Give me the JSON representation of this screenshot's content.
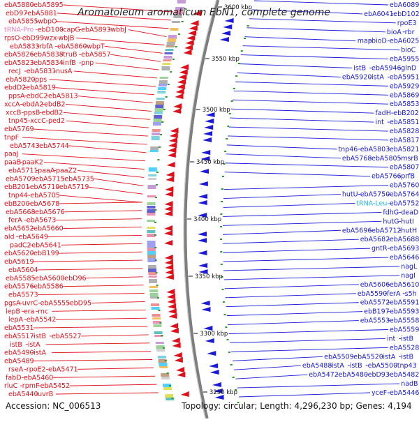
{
  "title": "Aromatoleum aromaticum EbN1, complete genome",
  "accession": "Accession: NC_006513",
  "topology": "Topology: circular; Length: 4,296,230 bp; Genes: 4,194",
  "colors": {
    "forward": "#e0101a",
    "reverse": "#1a1ad8",
    "trna": "#f07bb8",
    "trna_alt": "#22b8e6",
    "backbone": "#888888"
  },
  "ticks": [
    "3600 kbp",
    "3550 kbp",
    "3500 kbp",
    "3450 kbp",
    "3400 kbp",
    "3350 kbp",
    "3300 kbp",
    "3250 kbp"
  ],
  "left_labels": [
    [
      "ebA5880",
      "ebA5895"
    ],
    [
      "ebD97",
      "ebA5881"
    ],
    [
      "ebA5855",
      "wbpO"
    ],
    [
      "tRNA-Pro",
      "ebD100",
      "capG",
      "ebA5893",
      "wbbJ"
    ],
    [
      "rpsO",
      "ebD99",
      "wzx",
      "wbjB"
    ],
    [
      "ebA5833",
      "rbfA",
      "ebA5860",
      "wbpT"
    ],
    [
      "ebA5826",
      "ebA5838",
      "truB",
      "ebA5857"
    ],
    [
      "ebA5823",
      "ebA5834",
      "infB",
      "pnp"
    ],
    [
      "recJ",
      "ebA5831",
      "nusA"
    ],
    [
      "ebA5820",
      "pps"
    ],
    [
      "ebdD2",
      "ebA5819"
    ],
    [
      "ppsA",
      "ebdC2",
      "ebA5813"
    ],
    [
      "xccA",
      "ebdA2",
      "ebdB2"
    ],
    [
      "xccB",
      "ppsB",
      "ebdB2"
    ],
    [
      "tnp45",
      "xccC",
      "ped2"
    ],
    [
      "ebA5769"
    ],
    [
      "tnpF"
    ],
    [
      "ebA5743",
      "ebA5744"
    ],
    [
      "paaJ"
    ],
    [
      "paaB",
      "paaK2"
    ],
    [
      "ebA5711",
      "paaA",
      "paaZ2"
    ],
    [
      "ebA5709",
      "ebA5715",
      "ebA5735"
    ],
    [
      "ebB201",
      "ebA5710",
      "ebA5719"
    ],
    [
      "tnp44",
      "ebA5705"
    ],
    [
      "ebB200",
      "ebA5678"
    ],
    [
      "ebA5668",
      "ebA5676"
    ],
    [
      "ferA",
      "ebA5673"
    ],
    [
      "ebA5652",
      "ebA5660"
    ],
    [
      "ald",
      "ebA5649"
    ],
    [
      "padC2",
      "ebA5641"
    ],
    [
      "ebA5620",
      "ebB199"
    ],
    [
      "ebA5619"
    ],
    [
      "ebA5604"
    ],
    [
      "ebA5585",
      "ebA5600",
      "ebD96"
    ],
    [
      "ebA5576",
      "ebA5586"
    ],
    [
      "ebA5573"
    ],
    [
      "pgsA",
      "uvrC",
      "ebA5555",
      "ebD95"
    ],
    [
      "lepB",
      "era",
      "rnc"
    ],
    [
      "lepA",
      "ebA5542"
    ],
    [
      "ebA5531"
    ],
    [
      "ebA5517",
      "istB",
      "ebA5527"
    ],
    [
      "istB",
      "istA"
    ],
    [
      "ebA5490",
      "istA"
    ],
    [
      "ebA5489"
    ],
    [
      "rseA",
      "rpoE2",
      "ebA5471"
    ],
    [
      "fabD",
      "ebA5460"
    ],
    [
      "rluC",
      "rpmF",
      "ebA5452"
    ],
    [
      "ebA5440",
      "uvrB"
    ]
  ],
  "right_labels": [
    [
      "ebA6089"
    ],
    [
      "ebA6041",
      "ebD102"
    ],
    [
      "rpoE3"
    ],
    [
      "bioA",
      "rbr"
    ],
    [
      "map",
      "bioD",
      "ebA6025"
    ],
    [
      "bioC"
    ],
    [
      "ebA5955"
    ],
    [
      "istB",
      "ebA5946",
      "glnD"
    ],
    [
      "ebA5920",
      "istA",
      "ebA5951"
    ],
    [
      "ebA5929"
    ],
    [
      "ebA5869"
    ],
    [
      "ebA5853"
    ],
    [
      "fadH",
      "ebB202"
    ],
    [
      "int",
      "ebA5851"
    ],
    [
      "ebA5828"
    ],
    [
      "ebA5817"
    ],
    [
      "tnp46",
      "ebA5803",
      "ebA5821"
    ],
    [
      "ebA5768",
      "ebA5805",
      "msrB"
    ],
    [
      "ebA5807"
    ],
    [
      "ebA5766",
      "prfB"
    ],
    [
      "ebA5760"
    ],
    [
      "hutU",
      "ebA5750",
      "ebA5764"
    ],
    [
      "tRNA-Leu",
      "ebA5752"
    ],
    [
      "fdhG",
      "deaD"
    ],
    [
      "hutG",
      "hutI"
    ],
    [
      "ebA5696",
      "ebA5712",
      "hutH"
    ],
    [
      "ebA5682",
      "ebA5688"
    ],
    [
      "gntR",
      "ebA5693"
    ],
    [
      "ebA5646"
    ],
    [
      "nagL"
    ],
    [
      "nagI"
    ],
    [
      "ebA5606",
      "ebA5610"
    ],
    [
      "ebA5590",
      "ferA",
      "s5h"
    ],
    [
      "ebA5572",
      "ebA5591"
    ],
    [
      "ebB197",
      "ebA5593"
    ],
    [
      "ebA5553",
      "ebA5558"
    ],
    [
      "ebA5559"
    ],
    [
      "int",
      "istB"
    ],
    [
      "ebA5528"
    ],
    [
      "ebA5509",
      "ebA5520",
      "istA",
      "istB"
    ],
    [
      "ebA5488",
      "istA",
      "istB",
      "ebA5500",
      "tnp43"
    ],
    [
      "ebA5472",
      "ebA5480",
      "ebD93",
      "ebA5482"
    ],
    [
      "nadB"
    ],
    [
      "yceF",
      "ebA5446"
    ]
  ]
}
